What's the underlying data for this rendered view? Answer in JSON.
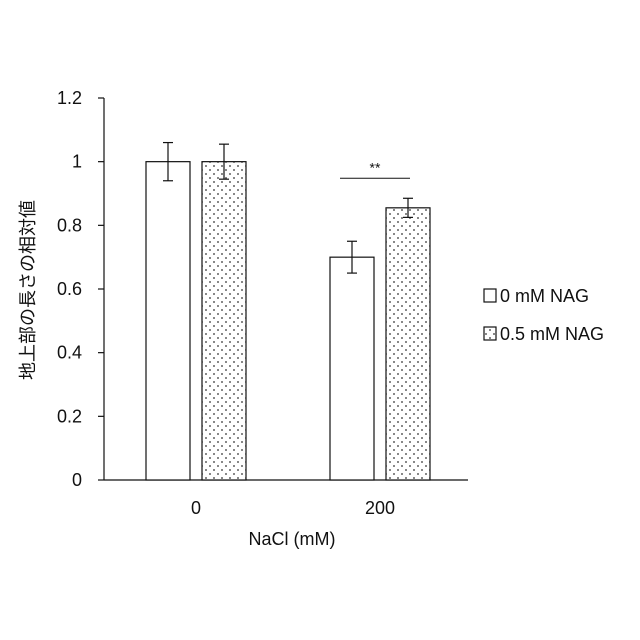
{
  "chart_data": {
    "type": "bar",
    "categories": [
      "0",
      "200"
    ],
    "series": [
      {
        "name": "0 mM NAG",
        "values": [
          1.0,
          0.7
        ],
        "errors": [
          0.06,
          0.05
        ],
        "fill": "plain"
      },
      {
        "name": "0.5 mM NAG",
        "values": [
          1.0,
          0.855
        ],
        "errors": [
          0.055,
          0.03
        ],
        "fill": "dotted"
      }
    ],
    "xlabel": "NaCl (mM)",
    "ylabel": "地上部の長さの相対値",
    "ylim": [
      0,
      1.2
    ],
    "yticks": [
      "0",
      "0.2",
      "0.4",
      "0.6",
      "0.8",
      "1",
      "1.2"
    ],
    "significance": [
      {
        "category": "200",
        "label": "**"
      }
    ],
    "legend_position": "right",
    "grid": false
  },
  "colors": {
    "axis": "#111111",
    "bar_fill": "#ffffff",
    "dot": "#333333"
  }
}
